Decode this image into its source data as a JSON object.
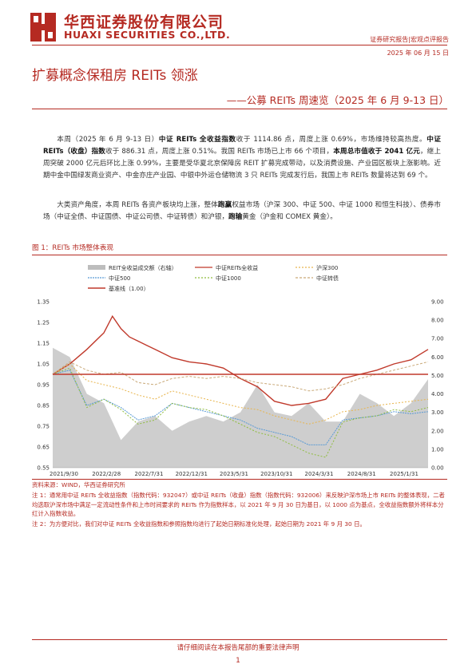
{
  "header": {
    "brand_cn": "华西证券股份有限公司",
    "brand_en": "HUAXI SECURITIES CO.,LTD.",
    "report_type": "证券研究报告|宏观点评报告",
    "date": "2025 年 06 月 15 日"
  },
  "title": "扩募概念保租房 REITs 领涨",
  "subtitle": "——公募 REITs 周速览（2025 年 6 月 9-13 日）",
  "para1": {
    "t1": "本周（2025 年 6 月 9-13 日）",
    "b1": "中证 REITs 全收益指数",
    "t2": "收于 1114.86 点，周度上涨 0.69%，市场维持较高热度。",
    "b2": "中证 REITs（收盘）指数",
    "t3": "收于 886.31 点，周度上涨 0.51%。我国 REITs 市场已上市 66 个项目，",
    "b3": "本周总市值收于 2041 亿元",
    "t4": "，继上周突破 2000 亿元后环比上涨 0.99%，主要是受华夏北京保障房 REIT 扩募完成带动，以及消费设施、产业园区板块上涨影响。近期中金中国绿发商业资产、中金亦庄产业园、中银中外运仓储物流 3 只 REITs 完成发行后，我国上市 REITs 数量将达到 69 个。"
  },
  "para2": {
    "t1": "大类资产角度，本周 REITs 各资产板块均上涨，整体",
    "b1": "跑赢",
    "t2": "权益市场（沪深 300、中证 500、中证 1000 和恒生科技）、债券市场（中证全债、中证国债、中证公司债、中证转债）和沪银，",
    "b2": "跑输",
    "t3": "黄金（沪金和 COMEX 黄金）。"
  },
  "figure": {
    "caption": "图 1：REITs 市场整体表现"
  },
  "chart_data": {
    "type": "line",
    "title": "",
    "legend": [
      "REIT全收益成交额（右轴）",
      "中证REITs全收益",
      "沪深300",
      "中证500",
      "中证1000",
      "中证转债",
      "基准线（1.00）"
    ],
    "x_ticks": [
      "2021/9/30",
      "2022/2/28",
      "2022/7/31",
      "2022/12/31",
      "2023/5/31",
      "2023/10/31",
      "2024/3/31",
      "2024/8/31",
      "2025/1/31"
    ],
    "left_axis": {
      "ticks": [
        "0.55",
        "0.65",
        "0.75",
        "0.85",
        "0.95",
        "1.05",
        "1.15",
        "1.25",
        "1.35"
      ],
      "ylim": [
        0.55,
        1.35
      ]
    },
    "right_axis": {
      "ticks": [
        "0.00",
        "1.00",
        "2.00",
        "3.00",
        "4.00",
        "5.00",
        "6.00",
        "7.00",
        "8.00",
        "9.00"
      ],
      "ylim": [
        0,
        9
      ]
    },
    "x_range": [
      0,
      44
    ],
    "series": [
      {
        "name": "中证REITs全收益",
        "color": "#c0392b",
        "x": [
          0,
          2,
          4,
          6,
          7,
          8,
          9,
          10,
          11,
          12,
          14,
          16,
          18,
          20,
          22,
          24,
          26,
          28,
          30,
          32,
          34,
          36,
          38,
          40,
          42,
          44
        ],
        "y": [
          1.0,
          1.05,
          1.12,
          1.2,
          1.28,
          1.22,
          1.18,
          1.16,
          1.14,
          1.12,
          1.08,
          1.06,
          1.05,
          1.03,
          0.98,
          0.94,
          0.87,
          0.85,
          0.86,
          0.88,
          0.98,
          1.0,
          1.02,
          1.05,
          1.07,
          1.12
        ]
      },
      {
        "name": "沪深300",
        "color": "#e8b54d",
        "x": [
          0,
          2,
          4,
          6,
          8,
          10,
          12,
          14,
          16,
          18,
          20,
          22,
          24,
          26,
          28,
          30,
          32,
          34,
          36,
          38,
          40,
          42,
          44
        ],
        "y": [
          1.0,
          1.05,
          0.97,
          0.95,
          0.93,
          0.9,
          0.88,
          0.92,
          0.9,
          0.88,
          0.86,
          0.84,
          0.83,
          0.8,
          0.78,
          0.76,
          0.78,
          0.82,
          0.83,
          0.85,
          0.86,
          0.87,
          0.88
        ]
      },
      {
        "name": "中证500",
        "color": "#5b9bd5",
        "x": [
          0,
          2,
          4,
          6,
          8,
          10,
          12,
          14,
          16,
          18,
          20,
          22,
          24,
          26,
          28,
          30,
          32,
          34,
          36,
          38,
          40,
          42,
          44
        ],
        "y": [
          1.0,
          1.02,
          0.85,
          0.88,
          0.84,
          0.78,
          0.8,
          0.86,
          0.84,
          0.82,
          0.8,
          0.78,
          0.74,
          0.72,
          0.7,
          0.66,
          0.66,
          0.78,
          0.79,
          0.8,
          0.82,
          0.81,
          0.82
        ]
      },
      {
        "name": "中证1000",
        "color": "#8fbc3f",
        "x": [
          0,
          2,
          4,
          6,
          8,
          10,
          12,
          14,
          16,
          18,
          20,
          22,
          24,
          26,
          28,
          30,
          32,
          34,
          36,
          38,
          40,
          42,
          44
        ],
        "y": [
          1.0,
          1.03,
          0.84,
          0.88,
          0.83,
          0.76,
          0.78,
          0.86,
          0.84,
          0.83,
          0.8,
          0.76,
          0.72,
          0.7,
          0.66,
          0.62,
          0.6,
          0.77,
          0.79,
          0.8,
          0.83,
          0.82,
          0.84
        ]
      },
      {
        "name": "中证转债",
        "color": "#c9a978",
        "x": [
          0,
          2,
          4,
          6,
          8,
          10,
          12,
          14,
          16,
          18,
          20,
          22,
          24,
          26,
          28,
          30,
          32,
          34,
          36,
          38,
          40,
          42,
          44
        ],
        "y": [
          1.0,
          1.06,
          1.02,
          1.0,
          1.01,
          0.96,
          0.95,
          0.98,
          0.99,
          0.98,
          0.99,
          0.98,
          0.96,
          0.95,
          0.94,
          0.92,
          0.93,
          0.95,
          0.98,
          1.0,
          1.02,
          1.04,
          1.06
        ]
      },
      {
        "name": "基准线（1.00）",
        "color": "#c0392b",
        "x": [
          0,
          44
        ],
        "y": [
          1.0,
          1.0
        ]
      }
    ],
    "volume_series": {
      "name": "REIT全收益成交额（右轴）",
      "color": "#bdbdbd",
      "x": [
        0,
        2,
        4,
        6,
        8,
        10,
        12,
        14,
        16,
        18,
        20,
        22,
        24,
        26,
        28,
        30,
        32,
        34,
        36,
        38,
        40,
        42,
        44
      ],
      "y": [
        6.5,
        6.0,
        4.0,
        3.5,
        1.5,
        2.5,
        2.8,
        2.0,
        2.5,
        2.8,
        2.5,
        3.0,
        4.5,
        3.0,
        2.8,
        3.5,
        2.5,
        2.5,
        4.0,
        3.5,
        2.8,
        3.5,
        4.8
      ]
    }
  },
  "notes": {
    "source": "资料来源：WIND，华西证券研究所",
    "note1": "注 1：通常用中证 REITs 全收益指数（指数代码：932047）或中证 REITs（收盘）指数（指数代码：932006）来反映沪深市场上市 REITs 的整体表现，二者均选取沪深市场中满足一定流动性条件和上市时间要求的 REITs 作为指数样本，以 2021 年 9 月 30 日为基日，以 1000 点为基点，全收益指数额外将样本分红计入指数收益。",
    "note2": "注 2：为方便对比，我们对中证 REITs 全收益指数和参照指数均进行了起始日期标准化处理，起始日期为 2021 年 9 月 30 日。"
  },
  "footer": {
    "disclaimer": "请仔细阅读在本报告尾部的重要法律声明",
    "page": "1"
  }
}
